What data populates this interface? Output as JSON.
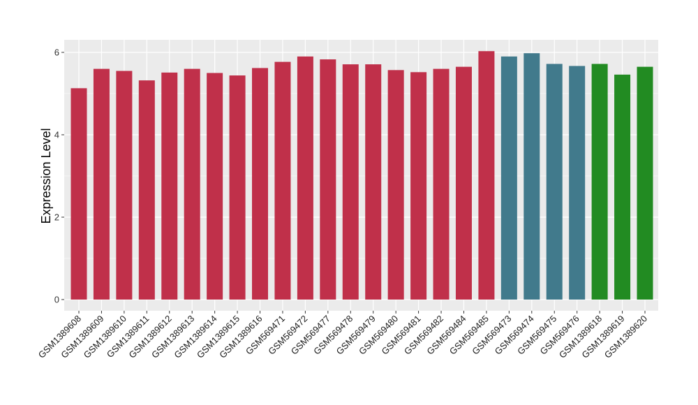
{
  "chart_data": {
    "type": "bar",
    "title": "",
    "xlabel": "",
    "ylabel": "Expression Level",
    "ylim": [
      0,
      6.3
    ],
    "yticks": [
      0,
      2,
      4,
      6
    ],
    "grid": true,
    "legend": "none",
    "colors": {
      "panel_bg": "#ebebeb",
      "grid": "#ffffff",
      "red": "#c0304a",
      "teal": "#417a8c",
      "green": "#228b22"
    },
    "categories": [
      "GSM1389608",
      "GSM1389609",
      "GSM1389610",
      "GSM1389611",
      "GSM1389612",
      "GSM1389613",
      "GSM1389614",
      "GSM1389615",
      "GSM1389616",
      "GSM569471",
      "GSM569472",
      "GSM569477",
      "GSM569478",
      "GSM569479",
      "GSM569480",
      "GSM569481",
      "GSM569482",
      "GSM569484",
      "GSM569485",
      "GSM569473",
      "GSM569474",
      "GSM569475",
      "GSM569476",
      "GSM1389618",
      "GSM1389619",
      "GSM1389620"
    ],
    "values": [
      5.13,
      5.6,
      5.55,
      5.32,
      5.51,
      5.6,
      5.5,
      5.44,
      5.62,
      5.77,
      5.9,
      5.83,
      5.71,
      5.71,
      5.57,
      5.52,
      5.6,
      5.65,
      6.03,
      5.9,
      5.98,
      5.72,
      5.67,
      5.72,
      5.46,
      5.65
    ],
    "bar_colors": [
      "#c0304a",
      "#c0304a",
      "#c0304a",
      "#c0304a",
      "#c0304a",
      "#c0304a",
      "#c0304a",
      "#c0304a",
      "#c0304a",
      "#c0304a",
      "#c0304a",
      "#c0304a",
      "#c0304a",
      "#c0304a",
      "#c0304a",
      "#c0304a",
      "#c0304a",
      "#c0304a",
      "#c0304a",
      "#417a8c",
      "#417a8c",
      "#417a8c",
      "#417a8c",
      "#228b22",
      "#228b22",
      "#228b22"
    ]
  }
}
